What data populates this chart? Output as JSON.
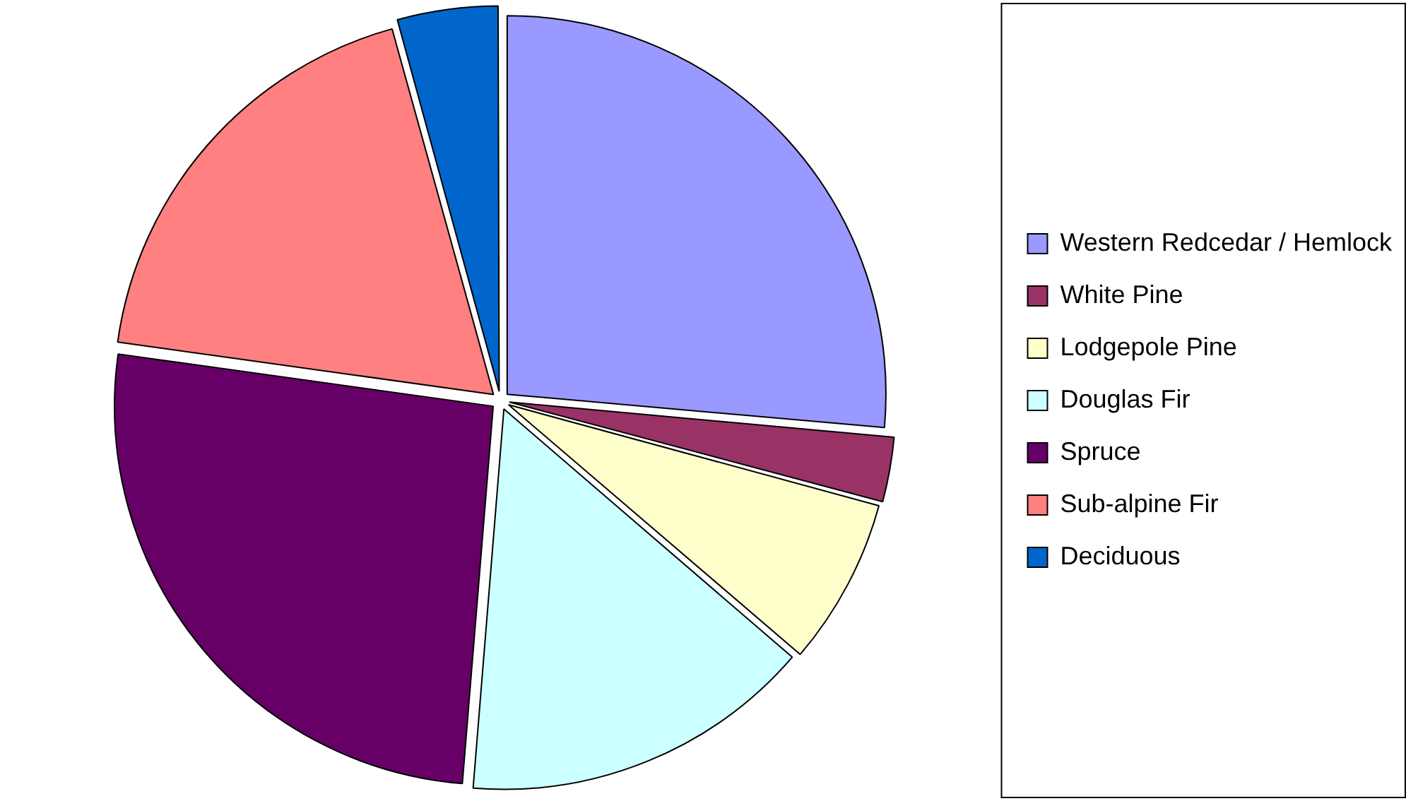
{
  "chart_data": {
    "type": "pie",
    "categories": [
      "Western Redcedar / Hemlock",
      "White Pine",
      "Lodgepole Pine",
      "Douglas Fir",
      "Spruce",
      "Sub-alpine Fir",
      "Deciduous"
    ],
    "values": [
      26.4,
      2.8,
      7.1,
      15.0,
      25.9,
      18.5,
      4.3
    ],
    "colors": [
      "#9999ff",
      "#993366",
      "#ffffcc",
      "#ccffff",
      "#660066",
      "#ff8080",
      "#0066cc"
    ],
    "legend": "right"
  }
}
